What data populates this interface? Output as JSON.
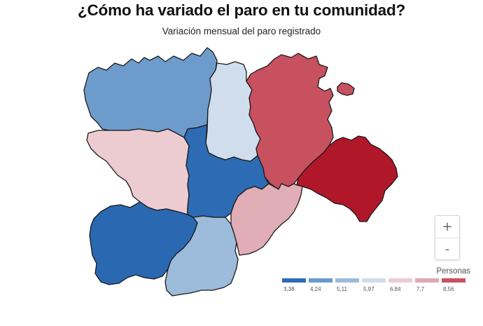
{
  "title": "¿Cómo ha variado el paro en tu comunidad?",
  "subtitle": "Variación mensual del paro registrado",
  "zoom": {
    "in_label": "+",
    "out_label": "-"
  },
  "legend": {
    "title": "Personas",
    "items": [
      {
        "label": "3,38",
        "color": "#2c6cb5"
      },
      {
        "label": "4,24",
        "color": "#6a9acb"
      },
      {
        "label": "5,11",
        "color": "#9dbbda"
      },
      {
        "label": "5,97",
        "color": "#cfddec"
      },
      {
        "label": "6,84",
        "color": "#ecccd2"
      },
      {
        "label": "7,7",
        "color": "#e0a8b3"
      },
      {
        "label": "8,56",
        "color": "#c8515f"
      }
    ]
  },
  "regions": [
    {
      "id": "leon",
      "color": "#6d9bcb"
    },
    {
      "id": "palencia",
      "color": "#cfddec"
    },
    {
      "id": "burgos",
      "color": "#c8515f"
    },
    {
      "id": "zamora",
      "color": "#eccbd1"
    },
    {
      "id": "valladolid",
      "color": "#2d6cb5"
    },
    {
      "id": "soria",
      "color": "#b0182a"
    },
    {
      "id": "salamanca",
      "color": "#2a68b2"
    },
    {
      "id": "avila",
      "color": "#9dbbda"
    },
    {
      "id": "segovia",
      "color": "#e1adb7"
    }
  ]
}
